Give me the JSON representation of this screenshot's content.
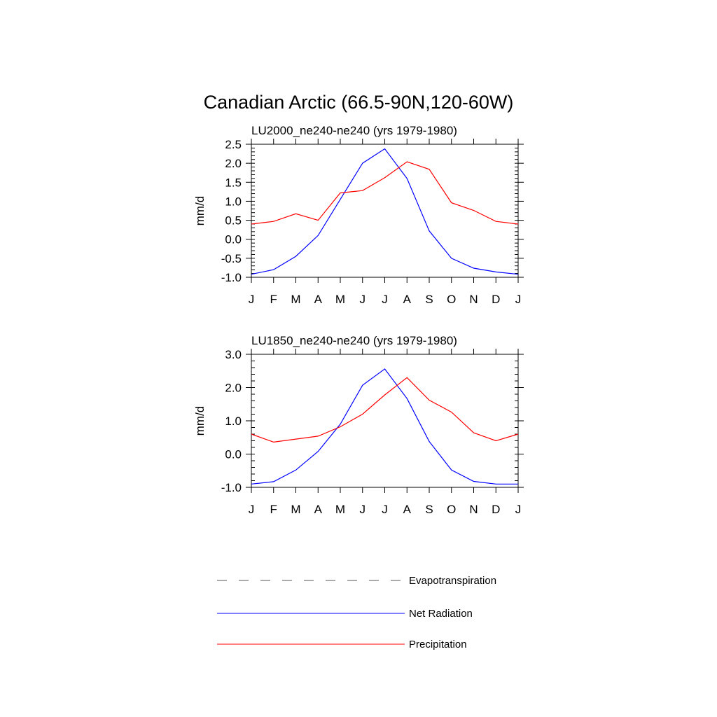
{
  "figure": {
    "title": "Canadian Arctic (66.5-90N,120-60W)"
  },
  "colors": {
    "net_radiation": "#0000ff",
    "precipitation": "#ff0000",
    "evapotranspiration": "#000000",
    "axes": "#000000"
  },
  "chart_data": [
    {
      "type": "line",
      "title": "LU2000_ne240-ne240 (yrs 1979-1980)",
      "xlabel": "",
      "ylabel": "mm/d",
      "categories": [
        "J",
        "F",
        "M",
        "A",
        "M",
        "J",
        "J",
        "A",
        "S",
        "O",
        "N",
        "D",
        "J"
      ],
      "ylim": [
        -1.0,
        2.5
      ],
      "yticks": [
        "2.5",
        "2.0",
        "1.5",
        "1.0",
        "0.5",
        "0.0",
        "-0.5",
        "-1.0"
      ],
      "ytick_values": [
        2.5,
        2.0,
        1.5,
        1.0,
        0.5,
        0.0,
        -0.5,
        -1.0
      ],
      "series": [
        {
          "name": "Net Radiation",
          "color": "#0000ff",
          "values": [
            -0.92,
            -0.8,
            -0.45,
            0.1,
            1.05,
            2.0,
            2.38,
            1.6,
            0.22,
            -0.5,
            -0.76,
            -0.86,
            -0.92
          ]
        },
        {
          "name": "Precipitation",
          "color": "#ff0000",
          "values": [
            0.4,
            0.47,
            0.67,
            0.5,
            1.22,
            1.28,
            1.62,
            2.04,
            1.84,
            0.96,
            0.76,
            0.47,
            0.4
          ]
        }
      ]
    },
    {
      "type": "line",
      "title": "LU1850_ne240-ne240 (yrs 1979-1980)",
      "xlabel": "",
      "ylabel": "mm/d",
      "categories": [
        "J",
        "F",
        "M",
        "A",
        "M",
        "J",
        "J",
        "A",
        "S",
        "O",
        "N",
        "D",
        "J"
      ],
      "ylim": [
        -1.0,
        3.0
      ],
      "yticks": [
        "3.0",
        "2.0",
        "1.0",
        "0.0",
        "-1.0"
      ],
      "ytick_values": [
        3.0,
        2.0,
        1.0,
        0.0,
        -1.0
      ],
      "series": [
        {
          "name": "Net Radiation",
          "color": "#0000ff",
          "values": [
            -0.9,
            -0.83,
            -0.48,
            0.08,
            0.9,
            2.07,
            2.56,
            1.67,
            0.38,
            -0.48,
            -0.82,
            -0.9,
            -0.9
          ]
        },
        {
          "name": "Precipitation",
          "color": "#ff0000",
          "values": [
            0.6,
            0.36,
            0.45,
            0.54,
            0.82,
            1.2,
            1.78,
            2.3,
            1.62,
            1.26,
            0.64,
            0.4,
            0.6
          ]
        }
      ]
    }
  ],
  "legend": {
    "placement": "bottom",
    "items": [
      {
        "label": "Evapotranspiration",
        "color": "#000000",
        "style": "dashed"
      },
      {
        "label": "Net Radiation",
        "color": "#0000ff",
        "style": "solid"
      },
      {
        "label": "Precipitation",
        "color": "#ff0000",
        "style": "solid"
      }
    ]
  }
}
